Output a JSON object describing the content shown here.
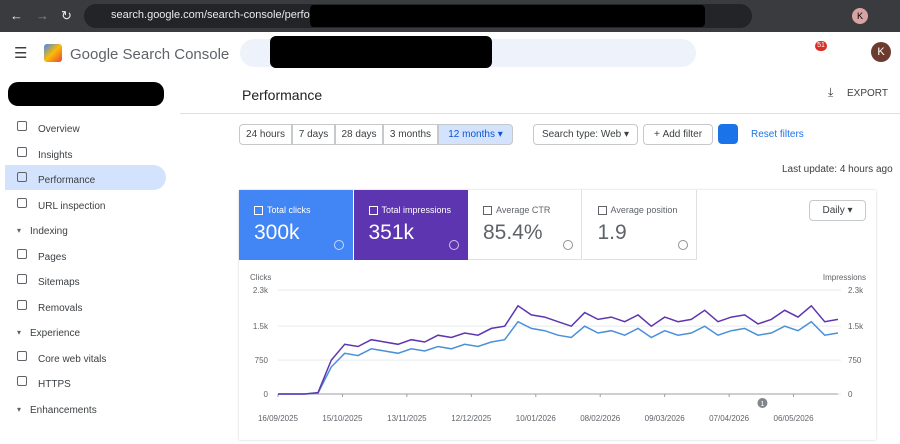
{
  "browser": {
    "url": "search.google.com/search-console/performa",
    "badge": "51",
    "avatar": "K"
  },
  "header": {
    "title": "Google Search Console"
  },
  "sidebar": {
    "items": [
      "Overview",
      "Insights",
      "Performance",
      "URL inspection"
    ],
    "sections": [
      {
        "title": "Indexing",
        "items": [
          "Pages",
          "Sitemaps",
          "Removals"
        ]
      },
      {
        "title": "Experience",
        "items": [
          "Core web vitals",
          "HTTPS"
        ]
      },
      {
        "title": "Enhancements",
        "items": []
      }
    ]
  },
  "page": {
    "title": "Performance",
    "export": "EXPORT",
    "ranges": [
      "24 hours",
      "7 days",
      "28 days",
      "3 months",
      "12 months"
    ],
    "search_type": "Search type: Web",
    "add_filter": "Add filter",
    "reset": "Reset filters",
    "last_update": "Last update: 4 hours ago",
    "granularity": "Daily"
  },
  "metrics": [
    {
      "label": "Total clicks",
      "value": "300k"
    },
    {
      "label": "Total impressions",
      "value": "351k"
    },
    {
      "label": "Average CTR",
      "value": "85.4%"
    },
    {
      "label": "Average position",
      "value": "1.9"
    }
  ],
  "chart_data": {
    "type": "line",
    "ylabel": "Clicks",
    "y2label": "Impressions",
    "x": [
      "16/09/2025",
      "22/09/2025",
      "28/09/2025",
      "04/10/2025",
      "10/10/2025",
      "16/10/2025",
      "22/10/2025",
      "28/10/2025",
      "03/11/2025",
      "09/11/2025",
      "15/11/2025",
      "21/11/2025",
      "27/11/2025",
      "03/12/2025",
      "09/12/2025",
      "15/12/2025",
      "21/12/2025",
      "27/12/2025",
      "02/01/2026",
      "08/01/2026",
      "14/01/2026",
      "20/01/2026",
      "26/01/2026",
      "01/02/2026",
      "07/02/2026",
      "13/02/2026",
      "19/02/2026",
      "25/02/2026",
      "03/03/2026",
      "09/03/2026",
      "15/03/2026",
      "21/03/2026",
      "27/03/2026",
      "02/04/2026",
      "08/04/2026",
      "14/04/2026",
      "20/04/2026",
      "26/04/2026",
      "02/05/2026",
      "08/05/2026",
      "14/05/2026",
      "20/05/2026",
      "26/05/2026"
    ],
    "xlim": [
      "16/09/2025",
      "26/05/2026"
    ],
    "xticks": [
      "16/09/2025",
      "15/10/2025",
      "13/11/2025",
      "12/12/2025",
      "10/01/2026",
      "08/02/2026",
      "09/03/2026",
      "07/04/2026",
      "06/05/2026"
    ],
    "ylim": [
      0,
      2300
    ],
    "yticks": [
      0,
      750,
      {
        "value": 1500,
        "label": "1.5k"
      },
      {
        "value": 2300,
        "label": "2.3k"
      }
    ],
    "y2lim": [
      0,
      2300
    ],
    "y2ticks": [
      0,
      750,
      {
        "value": 1500,
        "label": "1.5k"
      },
      {
        "value": 2300,
        "label": "2.3k"
      }
    ],
    "grid": true,
    "series": [
      {
        "name": "Clicks",
        "color": "#4a90d9",
        "values": [
          0,
          0,
          0,
          20,
          600,
          900,
          850,
          1000,
          950,
          900,
          1000,
          950,
          1050,
          1000,
          1100,
          1050,
          1150,
          1200,
          1600,
          1450,
          1400,
          1300,
          1250,
          1500,
          1350,
          1400,
          1300,
          1450,
          1250,
          1400,
          1300,
          1350,
          1500,
          1300,
          1400,
          1450,
          1300,
          1350,
          1500,
          1400,
          1600,
          1300,
          1350
        ]
      },
      {
        "name": "Impressions",
        "color": "#5e35b1",
        "axis": "y2",
        "values": [
          0,
          0,
          0,
          30,
          750,
          1100,
          1050,
          1200,
          1150,
          1100,
          1200,
          1150,
          1300,
          1250,
          1350,
          1300,
          1450,
          1500,
          1950,
          1750,
          1700,
          1600,
          1500,
          1800,
          1650,
          1700,
          1600,
          1750,
          1500,
          1700,
          1600,
          1650,
          1850,
          1600,
          1700,
          1750,
          1550,
          1650,
          1850,
          1700,
          1950,
          1600,
          1650
        ]
      }
    ],
    "annotations": [
      {
        "x": "22/04/2026",
        "label": "1"
      }
    ]
  }
}
